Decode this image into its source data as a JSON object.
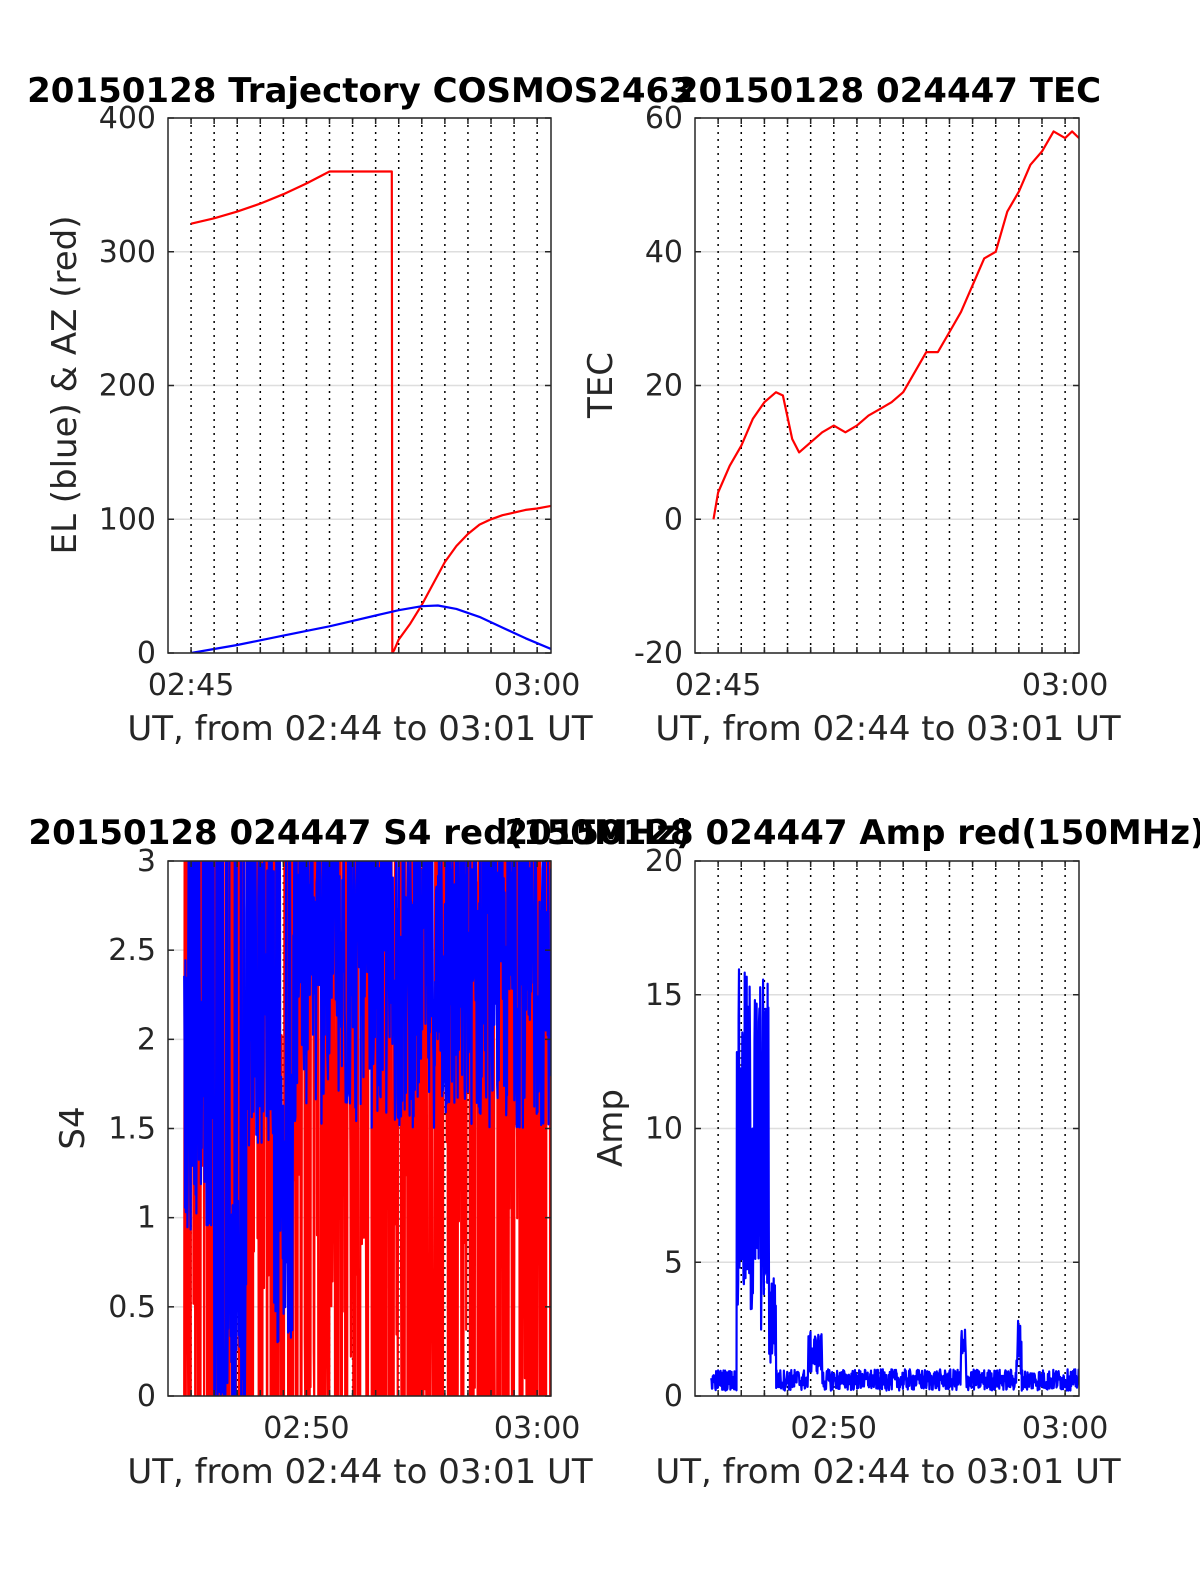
{
  "colors": {
    "red": "#ff0000",
    "blue": "#0000ff",
    "axis": "#262626",
    "grid": "#dedede",
    "vgrid": "#000000"
  },
  "chart_data": [
    {
      "id": "traj",
      "type": "line",
      "title": "20150128 Trajectory COSMOS2463",
      "xlabel": "UT, from 02:44 to 03:01 UT",
      "ylabel": "EL (blue) & AZ (red)",
      "xlim": [
        44.0,
        60.6
      ],
      "ylim": [
        0,
        400
      ],
      "yticks": [
        0,
        100,
        200,
        300,
        400
      ],
      "xticks": [
        {
          "x": 45,
          "label": "02:45"
        },
        {
          "x": 60,
          "label": "03:00"
        }
      ],
      "vgrid_x": [
        45,
        46,
        47,
        48,
        49,
        50,
        51,
        52,
        53,
        54,
        55,
        56,
        57,
        58,
        59,
        60
      ],
      "series": [
        {
          "color": "red",
          "x": [
            45.0,
            46.0,
            47.0,
            48.0,
            49.0,
            50.0,
            51.0,
            52.0,
            53.0,
            53.7,
            53.72,
            53.8,
            54.0,
            54.5,
            55.0,
            55.5,
            56.0,
            56.5,
            57.0,
            57.5,
            58.0,
            58.5,
            59.0,
            59.5,
            60.0,
            60.6
          ],
          "y": [
            321,
            325,
            330,
            336,
            343,
            351,
            360,
            360,
            360,
            360,
            0,
            2,
            10,
            22,
            36,
            52,
            68,
            80,
            89,
            96,
            100,
            103,
            105,
            107,
            108,
            110
          ]
        },
        {
          "color": "blue",
          "x": [
            45.0,
            46.0,
            47.0,
            48.0,
            49.0,
            50.0,
            51.0,
            52.0,
            53.0,
            54.0,
            55.0,
            55.7,
            56.5,
            57.5,
            58.5,
            59.5,
            60.6
          ],
          "y": [
            0,
            3,
            6,
            9.5,
            13,
            16.5,
            20,
            24,
            28,
            32,
            35,
            35.5,
            33,
            27,
            19,
            11,
            3
          ]
        }
      ]
    },
    {
      "id": "tec",
      "type": "line",
      "title": "20150128 024447 TEC",
      "xlabel": "UT, from 02:44 to 03:01 UT",
      "ylabel": "TEC",
      "xlim": [
        44.0,
        60.6
      ],
      "ylim": [
        -20,
        60
      ],
      "yticks": [
        -20,
        0,
        20,
        40,
        60
      ],
      "xticks": [
        {
          "x": 45,
          "label": "02:45"
        },
        {
          "x": 60,
          "label": "03:00"
        }
      ],
      "vgrid_x": [
        45,
        46,
        47,
        48,
        49,
        50,
        51,
        52,
        53,
        54,
        55,
        56,
        57,
        58,
        59,
        60
      ],
      "series": [
        {
          "color": "red",
          "x": [
            44.8,
            45.0,
            45.5,
            46.0,
            46.5,
            47.0,
            47.5,
            47.8,
            48.2,
            48.5,
            49.0,
            49.5,
            50.0,
            50.5,
            51.0,
            51.5,
            52.0,
            52.5,
            53.0,
            53.5,
            54.0,
            54.5,
            55.0,
            55.5,
            56.0,
            56.5,
            57.0,
            57.5,
            58.0,
            58.5,
            59.0,
            59.5,
            60.0,
            60.3,
            60.6
          ],
          "y": [
            0,
            4,
            8,
            11,
            15,
            17.5,
            19,
            18.5,
            12,
            10,
            11.5,
            13,
            14,
            13,
            14,
            15.5,
            16.5,
            17.5,
            19,
            22,
            25,
            25,
            28,
            31,
            35,
            39,
            40,
            46,
            49,
            53,
            55,
            58,
            57,
            58,
            57
          ]
        }
      ]
    },
    {
      "id": "s4",
      "type": "line",
      "title": "20150128 024447 S4 red(150MHz)",
      "xlabel": "UT, from 02:44 to 03:01 UT",
      "ylabel": "S4",
      "xlim": [
        44.0,
        60.6
      ],
      "ylim": [
        0,
        3
      ],
      "yticks": [
        0,
        0.5,
        1,
        1.5,
        2,
        2.5,
        3
      ],
      "ytick_labels": [
        "0",
        "0.5",
        "1",
        "1.5",
        "2",
        "2.5",
        "3"
      ],
      "xticks": [
        {
          "x": 50,
          "label": "02:50"
        },
        {
          "x": 60,
          "label": "03:00"
        }
      ],
      "vgrid_x": [
        45,
        46,
        47,
        48,
        49,
        50,
        51,
        52,
        53,
        54,
        55,
        56,
        57,
        58,
        59,
        60
      ],
      "series": [
        {
          "color": "red",
          "x_start": 44.7,
          "x_end": 60.6,
          "noise": true
        },
        {
          "color": "blue",
          "x_start": 44.7,
          "x_end": 60.6,
          "noise": true
        }
      ]
    },
    {
      "id": "amp",
      "type": "line",
      "title": "20150128 024447 Amp red(150MHz)",
      "xlabel": "UT, from 02:44 to 03:01 UT",
      "ylabel": "Amp",
      "xlim": [
        44.0,
        60.6
      ],
      "ylim": [
        0,
        20
      ],
      "yticks": [
        0,
        5,
        10,
        15,
        20
      ],
      "xticks": [
        {
          "x": 50,
          "label": "02:50"
        },
        {
          "x": 60,
          "label": "03:00"
        }
      ],
      "vgrid_x": [
        45,
        46,
        47,
        48,
        49,
        50,
        51,
        52,
        53,
        54,
        55,
        56,
        57,
        58,
        59,
        60
      ],
      "series": [
        {
          "color": "blue",
          "x_start": 44.7,
          "x_end": 60.6,
          "noise": true
        }
      ]
    }
  ]
}
